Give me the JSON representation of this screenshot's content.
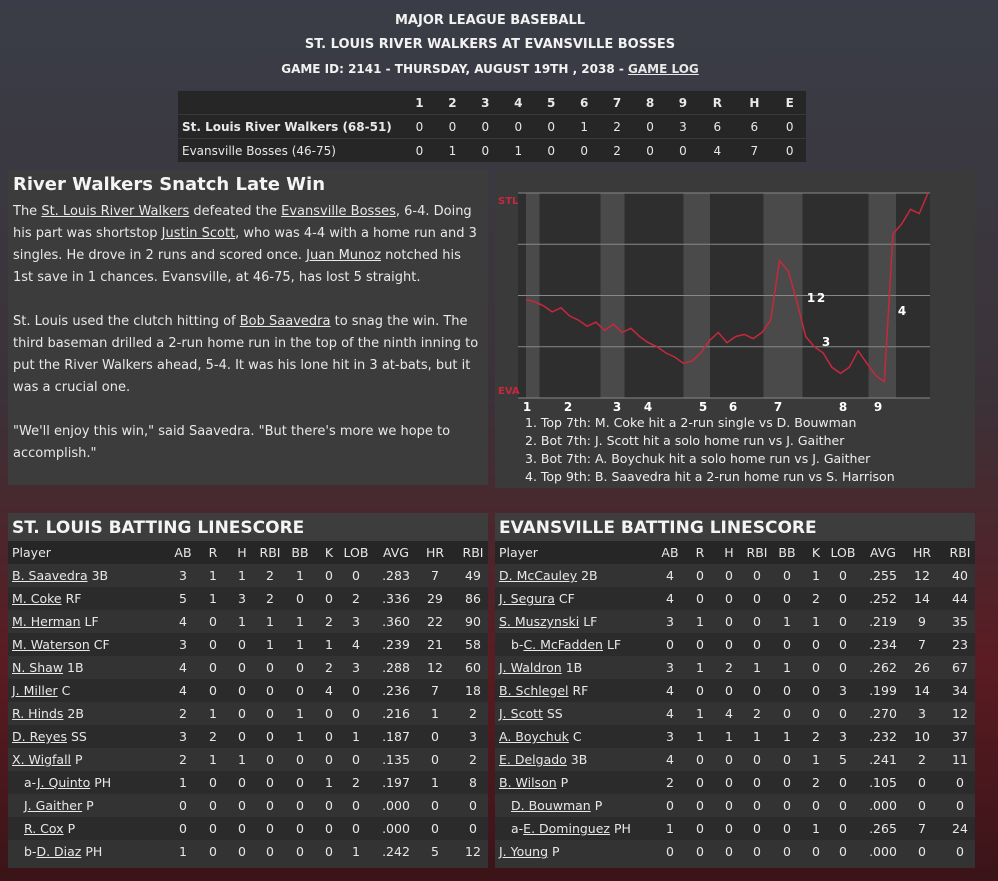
{
  "header": {
    "league": "MAJOR LEAGUE BASEBALL",
    "matchup": "ST. LOUIS RIVER WALKERS AT EVANSVILLE BOSSES",
    "game_info": "GAME ID: 2141 - THURSDAY, AUGUST 19TH , 2038 - ",
    "game_log_link": "GAME LOG"
  },
  "linescore": {
    "columns": [
      "1",
      "2",
      "3",
      "4",
      "5",
      "6",
      "7",
      "8",
      "9",
      "R",
      "H",
      "E"
    ],
    "rows": [
      {
        "team": "St. Louis River Walkers (68-51)",
        "cells": [
          0,
          0,
          0,
          0,
          0,
          1,
          2,
          0,
          3,
          6,
          6,
          0
        ]
      },
      {
        "team": "Evansville Bosses (46-75)",
        "cells": [
          0,
          1,
          0,
          1,
          0,
          0,
          2,
          0,
          0,
          4,
          7,
          0
        ]
      }
    ]
  },
  "story": {
    "title": "River Walkers Snatch Late Win",
    "paragraphs": [
      [
        "The ",
        {
          "link": "St. Louis River Walkers"
        },
        " defeated the ",
        {
          "link": "Evansville Bosses"
        },
        ", 6-4. Doing his part was shortstop ",
        {
          "link": "Justin Scott"
        },
        ", who was 4-4 with a home run and 3 singles. He drove in 2 runs and scored once. ",
        {
          "link": "Juan Munoz"
        },
        " notched his 1st save in 1 chances. Evansville, at 46-75, has lost 5 straight."
      ],
      [
        "St. Louis used the clutch hitting of ",
        {
          "link": "Bob Saavedra"
        },
        " to snag the win. The third baseman drilled a 2-run home run in the top of the ninth inning to put the River Walkers ahead, 5-4. It was his lone hit in 3 at-bats, but it was a crucial one."
      ],
      [
        "\"We'll enjoy this win,\" said Saavedra. \"But there's more we hope to accomplish.\""
      ]
    ]
  },
  "win_chart": {
    "top_label": "STL",
    "bottom_label": "EVA",
    "ylim": [
      0,
      100
    ],
    "color": "#c8283c",
    "values": [
      48,
      47,
      45,
      42,
      44,
      40,
      38,
      35,
      37,
      33,
      36,
      32,
      34,
      30,
      27,
      25,
      22,
      20,
      17,
      18,
      22,
      28,
      32,
      27,
      30,
      31,
      29,
      32,
      38,
      67,
      62,
      47,
      30,
      25,
      22,
      15,
      12,
      15,
      23,
      17,
      11,
      8,
      80,
      85,
      92,
      90,
      100
    ],
    "innings": [
      "1",
      "2",
      "3",
      "4",
      "5",
      "6",
      "7",
      "8",
      "9"
    ],
    "markers": [
      "1",
      "2",
      "3",
      "4"
    ],
    "notes": [
      "1. Top 7th: M. Coke hit a 2-run single vs D. Bouwman",
      "2. Bot 7th: J. Scott hit a solo home run vs J. Gaither",
      "3. Bot 7th: A. Boychuk hit a solo home run vs J. Gaither",
      "4. Top 9th: B. Saavedra hit a 2-run home run vs S. Harrison"
    ]
  },
  "batting": [
    {
      "title": "ST. LOUIS BATTING LINESCORE",
      "columns": [
        "Player",
        "AB",
        "R",
        "H",
        "RBI",
        "BB",
        "K",
        "LOB",
        "AVG",
        "HR",
        "RBI"
      ],
      "rows": [
        {
          "name": "B. Saavedra",
          "pos": "3B",
          "stats": [
            3,
            1,
            1,
            2,
            1,
            0,
            0,
            ".283",
            7,
            49
          ]
        },
        {
          "name": "M. Coke",
          "pos": "RF",
          "stats": [
            5,
            1,
            3,
            2,
            0,
            0,
            2,
            ".336",
            29,
            86
          ]
        },
        {
          "name": "M. Herman",
          "pos": "LF",
          "stats": [
            4,
            0,
            1,
            1,
            1,
            2,
            3,
            ".360",
            22,
            90
          ]
        },
        {
          "name": "M. Waterson",
          "pos": "CF",
          "stats": [
            3,
            0,
            0,
            1,
            1,
            1,
            4,
            ".239",
            21,
            58
          ]
        },
        {
          "name": "N. Shaw",
          "pos": "1B",
          "stats": [
            4,
            0,
            0,
            0,
            0,
            2,
            3,
            ".288",
            12,
            60
          ]
        },
        {
          "name": "J. Miller",
          "pos": "C",
          "stats": [
            4,
            0,
            0,
            0,
            0,
            4,
            0,
            ".236",
            7,
            18
          ]
        },
        {
          "name": "R. Hinds",
          "pos": "2B",
          "stats": [
            2,
            1,
            0,
            0,
            1,
            0,
            0,
            ".216",
            1,
            2
          ]
        },
        {
          "name": "D. Reyes",
          "pos": "SS",
          "stats": [
            3,
            2,
            0,
            0,
            1,
            0,
            1,
            ".187",
            0,
            3
          ]
        },
        {
          "name": "X. Wigfall",
          "pos": "P",
          "stats": [
            2,
            1,
            1,
            0,
            0,
            0,
            0,
            ".135",
            0,
            2
          ]
        },
        {
          "prefix": "a-",
          "name": "J. Quinto",
          "pos": "PH",
          "indent": true,
          "stats": [
            1,
            0,
            0,
            0,
            0,
            1,
            2,
            ".197",
            1,
            8
          ]
        },
        {
          "name": "J. Gaither",
          "pos": "P",
          "indent": true,
          "stats": [
            0,
            0,
            0,
            0,
            0,
            0,
            0,
            ".000",
            0,
            0
          ]
        },
        {
          "name": "R. Cox",
          "pos": "P",
          "indent": true,
          "stats": [
            0,
            0,
            0,
            0,
            0,
            0,
            0,
            ".000",
            0,
            0
          ]
        },
        {
          "prefix": "b-",
          "name": "D. Diaz",
          "pos": "PH",
          "indent": true,
          "stats": [
            1,
            0,
            0,
            0,
            0,
            0,
            1,
            ".242",
            5,
            12
          ]
        }
      ]
    },
    {
      "title": "EVANSVILLE BATTING LINESCORE",
      "columns": [
        "Player",
        "AB",
        "R",
        "H",
        "RBI",
        "BB",
        "K",
        "LOB",
        "AVG",
        "HR",
        "RBI"
      ],
      "rows": [
        {
          "name": "D. McCauley",
          "pos": "2B",
          "stats": [
            4,
            0,
            0,
            0,
            0,
            1,
            0,
            ".255",
            12,
            40
          ]
        },
        {
          "name": "J. Segura",
          "pos": "CF",
          "stats": [
            4,
            0,
            0,
            0,
            0,
            2,
            0,
            ".252",
            14,
            44
          ]
        },
        {
          "name": "S. Muszynski",
          "pos": "LF",
          "stats": [
            3,
            1,
            0,
            0,
            1,
            1,
            0,
            ".219",
            9,
            35
          ]
        },
        {
          "prefix": "b-",
          "name": "C. McFadden",
          "pos": "LF",
          "indent": true,
          "stats": [
            0,
            0,
            0,
            0,
            0,
            0,
            0,
            ".234",
            7,
            23
          ]
        },
        {
          "name": "J. Waldron",
          "pos": "1B",
          "stats": [
            3,
            1,
            2,
            1,
            1,
            0,
            0,
            ".262",
            26,
            67
          ]
        },
        {
          "name": "B. Schlegel",
          "pos": "RF",
          "stats": [
            4,
            0,
            0,
            0,
            0,
            0,
            3,
            ".199",
            14,
            34
          ]
        },
        {
          "name": "J. Scott",
          "pos": "SS",
          "stats": [
            4,
            1,
            4,
            2,
            0,
            0,
            0,
            ".270",
            3,
            12
          ]
        },
        {
          "name": "A. Boychuk",
          "pos": "C",
          "stats": [
            3,
            1,
            1,
            1,
            1,
            2,
            3,
            ".232",
            10,
            37
          ]
        },
        {
          "name": "E. Delgado",
          "pos": "3B",
          "stats": [
            4,
            0,
            0,
            0,
            0,
            1,
            5,
            ".241",
            2,
            11
          ]
        },
        {
          "name": "B. Wilson",
          "pos": "P",
          "stats": [
            2,
            0,
            0,
            0,
            0,
            2,
            0,
            ".105",
            0,
            0
          ]
        },
        {
          "name": "D. Bouwman",
          "pos": "P",
          "indent": true,
          "stats": [
            0,
            0,
            0,
            0,
            0,
            0,
            0,
            ".000",
            0,
            0
          ]
        },
        {
          "prefix": "a-",
          "name": "E. Dominguez",
          "pos": "PH",
          "indent": true,
          "stats": [
            1,
            0,
            0,
            0,
            0,
            1,
            0,
            ".265",
            7,
            24
          ]
        },
        {
          "name": "J. Young",
          "pos": "P",
          "stats": [
            0,
            0,
            0,
            0,
            0,
            0,
            0,
            ".000",
            0,
            0
          ]
        }
      ]
    }
  ]
}
